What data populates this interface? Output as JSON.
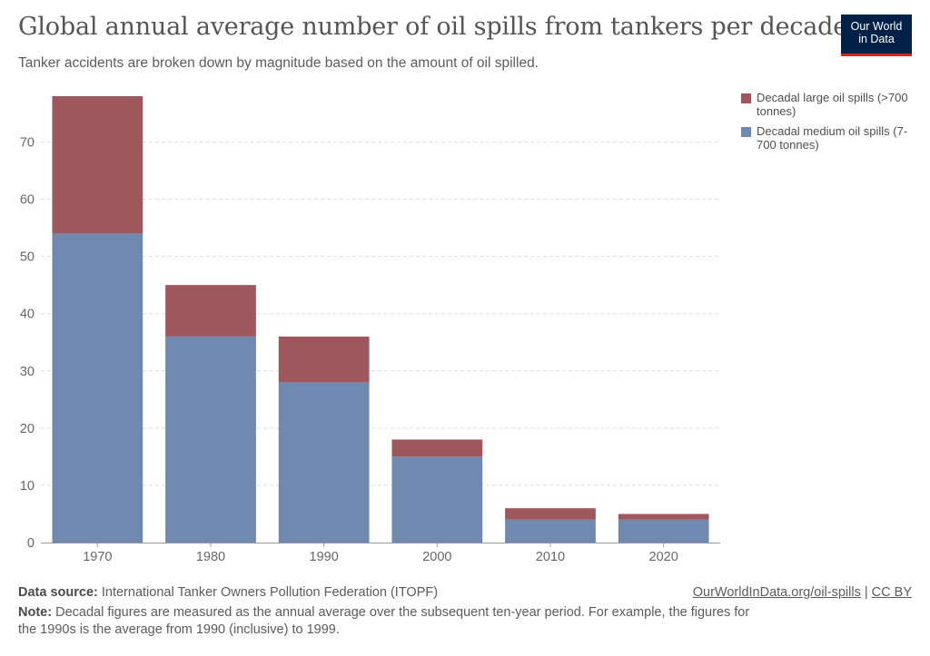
{
  "header": {
    "title": "Global annual average number of oil spills from tankers per decade",
    "subtitle": "Tanker accidents are broken down by magnitude based on the amount of oil spilled."
  },
  "logo": {
    "line1": "Our World",
    "line2": "in Data"
  },
  "legend": {
    "items": [
      {
        "label": "Decadal large oil spills (>700 tonnes)",
        "color": "#9e575c"
      },
      {
        "label": "Decadal medium oil spills (7-700 tonnes)",
        "color": "#6f89b0"
      }
    ]
  },
  "chart_data": {
    "type": "bar",
    "stacked": true,
    "categories": [
      "1970",
      "1980",
      "1990",
      "2000",
      "2010",
      "2020"
    ],
    "series": [
      {
        "name": "Decadal medium oil spills (7-700 tonnes)",
        "values": [
          54,
          36,
          28,
          15,
          4,
          4
        ],
        "color": "#6f89b0"
      },
      {
        "name": "Decadal large oil spills (>700 tonnes)",
        "values": [
          24,
          9,
          8,
          3,
          2,
          1
        ],
        "color": "#9e575c"
      }
    ],
    "yticks": [
      0,
      10,
      20,
      30,
      40,
      50,
      60,
      70
    ],
    "ylim": [
      0,
      78
    ],
    "grid": true,
    "legend_position": "top-right"
  },
  "footer": {
    "source_label": "Data source:",
    "source_text": "International Tanker Owners Pollution Federation (ITOPF)",
    "note_label": "Note:",
    "note_text": "Decadal figures are measured as the annual average over the subsequent ten-year period. For example, the figures for the 1990s is the average from 1990 (inclusive) to 1999.",
    "link_text": "OurWorldInData.org/oil-spills",
    "separator": "|",
    "license": "CC BY"
  }
}
